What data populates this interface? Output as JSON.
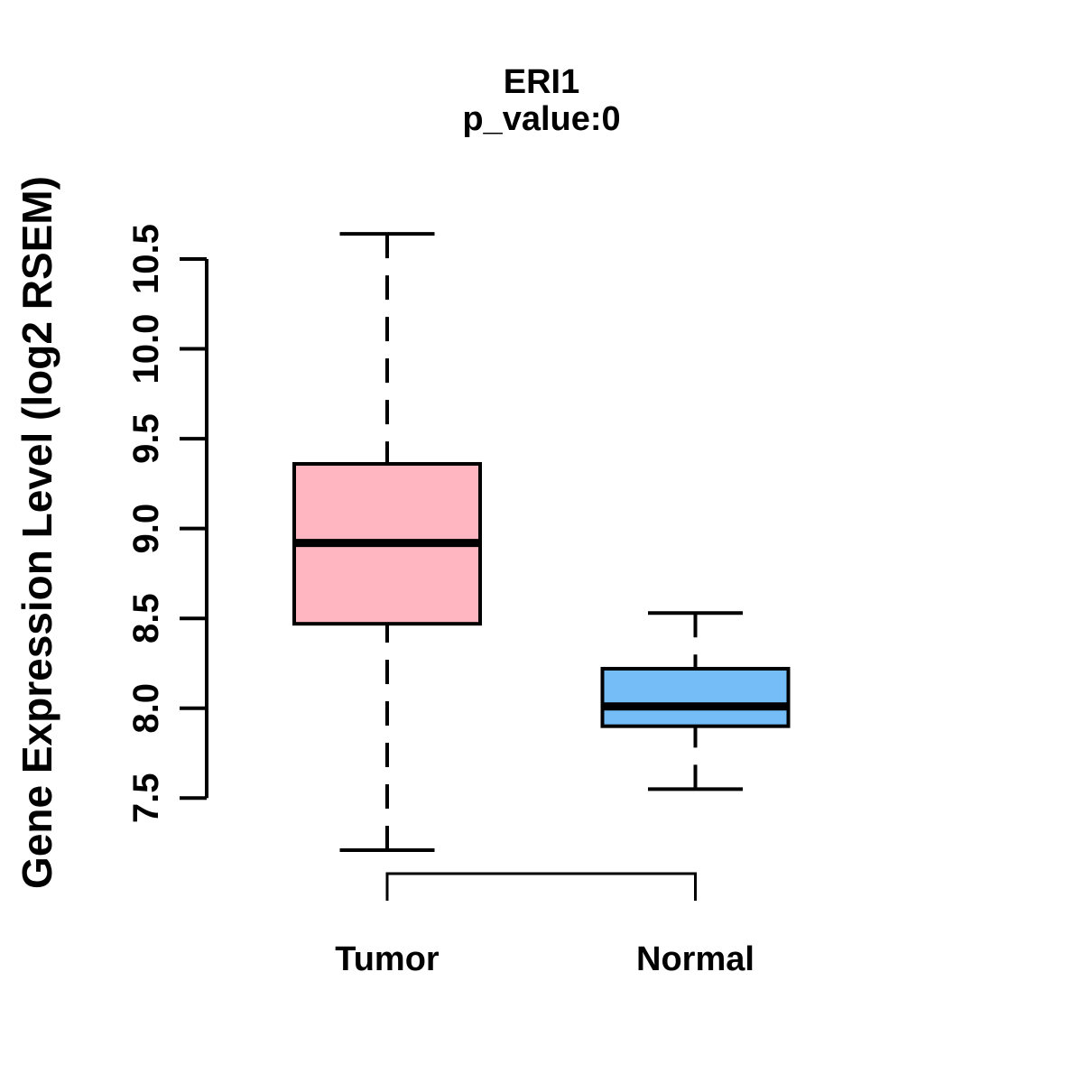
{
  "chart_data": {
    "type": "boxplot",
    "title": "ERI1",
    "subtitle": "p_value:0",
    "ylabel": "Gene Expression Level (log2 RSEM)",
    "categories": [
      "Tumor",
      "Normal"
    ],
    "ylim": [
      7.5,
      10.5
    ],
    "yticks": [
      "7.5",
      "8.0",
      "8.5",
      "9.0",
      "9.5",
      "10.0",
      "10.5"
    ],
    "grid": false,
    "legend": "none",
    "groups": [
      {
        "label": "Tumor",
        "color": "#FFB6C1",
        "stats": {
          "whisker_low": 7.21,
          "q1": 8.47,
          "median": 8.92,
          "q3": 9.36,
          "whisker_high": 10.64
        }
      },
      {
        "label": "Normal",
        "color": "#74BDF7",
        "stats": {
          "whisker_low": 7.55,
          "q1": 7.9,
          "median": 8.01,
          "q3": 8.22,
          "whisker_high": 8.53
        }
      }
    ],
    "annotations": {
      "comparison_bracket": {
        "between": [
          "Tumor",
          "Normal"
        ]
      }
    },
    "colors": {
      "stroke": "#000000",
      "background": "#FFFFFF"
    }
  }
}
